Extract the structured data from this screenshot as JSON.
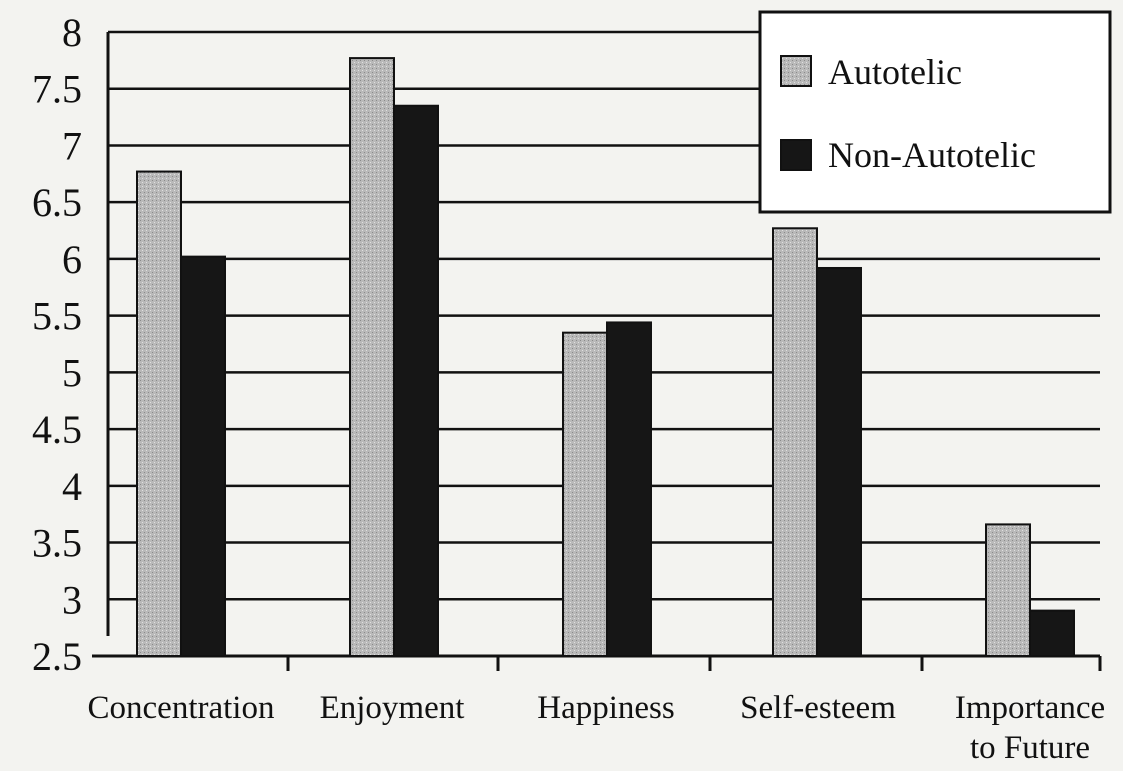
{
  "chart_data": {
    "type": "bar",
    "categories": [
      [
        "Concentration"
      ],
      [
        "Enjoyment"
      ],
      [
        "Happiness"
      ],
      [
        "Self-esteem"
      ],
      [
        "Importance",
        "to Future"
      ]
    ],
    "series": [
      {
        "name": "Autotelic",
        "values": [
          6.77,
          7.77,
          5.35,
          6.27,
          3.66
        ]
      },
      {
        "name": "Non-Autotelic",
        "values": [
          6.02,
          7.35,
          5.44,
          5.92,
          2.9
        ]
      }
    ],
    "ylim": [
      2.5,
      8
    ],
    "yticks": [
      "2.5",
      "3",
      "3.5",
      "4",
      "4.5",
      "5",
      "5.5",
      "6",
      "6.5",
      "7",
      "7.5",
      "8"
    ],
    "grid": true,
    "legend_position": "top-right",
    "colors": {
      "background": "#f3f3f0",
      "axis": "#111111",
      "autotelic": "#b9b9b9",
      "non_autotelic": "#161616"
    }
  }
}
